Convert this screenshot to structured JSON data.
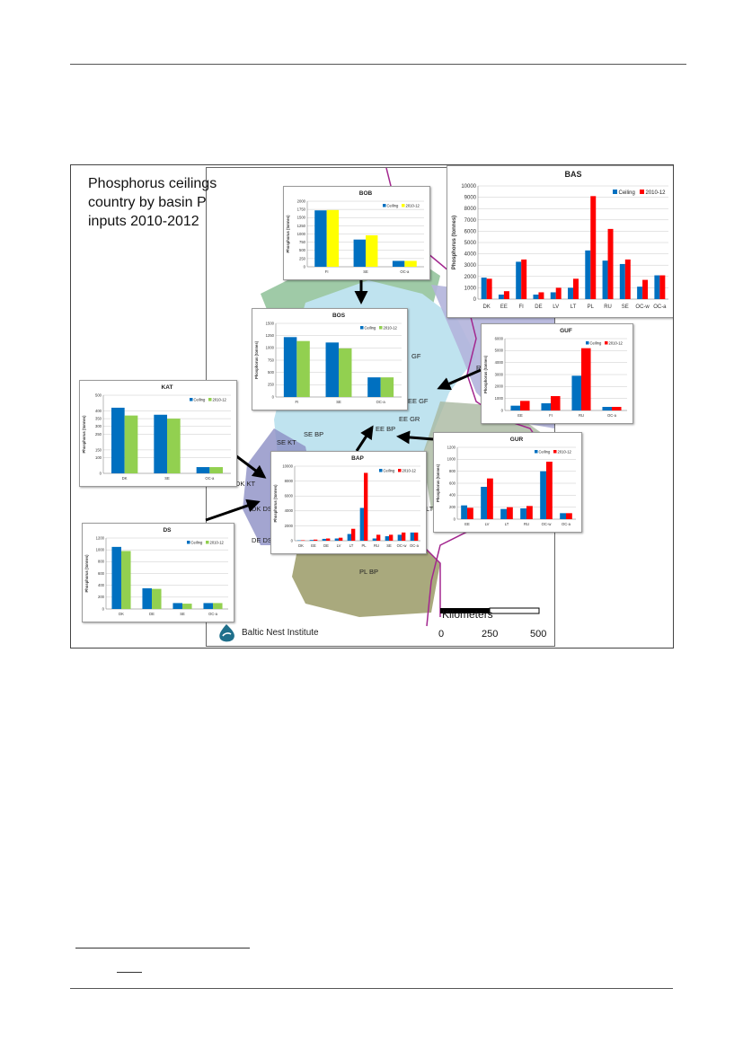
{
  "figure": {
    "title": "Phosphorus ceilings country by basin P inputs 2010-2012",
    "title_lines": [
      "Phosphorus ceilings",
      "country by basin P",
      "inputs 2010-2012"
    ],
    "map_labels": [
      "GF",
      "RU",
      "EE GF",
      "EE GR",
      "EE BP",
      "SE KT",
      "SE BP",
      "DK KT",
      "DK DS",
      "DE DS",
      "PL BP",
      "LT"
    ],
    "scale": {
      "title": "Kilometers",
      "ticks": [
        "0",
        "250",
        "500"
      ]
    },
    "brand": "Baltic Nest Institute",
    "colors": {
      "ceiling": "#0070c0",
      "bob_2010": "#ffff00",
      "green_2010": "#92d050",
      "red_2010": "#ff0000"
    }
  },
  "chart_data": [
    {
      "id": "BOB",
      "type": "bar",
      "title": "BOB",
      "ylabel": "Phosphorus (tonnes)",
      "yticks": [
        "0",
        "250",
        "500",
        "750",
        "1000",
        "1250",
        "1500",
        "1750",
        "2000"
      ],
      "ylim": [
        0,
        2000
      ],
      "categories": [
        "FI",
        "SE",
        "OC-a"
      ],
      "series": [
        {
          "name": "Ceiling",
          "color": "#0070c0",
          "values": [
            1720,
            830,
            180
          ]
        },
        {
          "name": "2010-12",
          "color": "#ffff00",
          "values": [
            1730,
            960,
            180
          ]
        }
      ],
      "legend": "top-right"
    },
    {
      "id": "BAS",
      "type": "bar",
      "title": "BAS",
      "ylabel": "Phosphorus (tonnes)",
      "yticks": [
        "0",
        "1000",
        "2000",
        "3000",
        "4000",
        "5000",
        "6000",
        "7000",
        "8000",
        "9000",
        "10000"
      ],
      "ylim": [
        0,
        10000
      ],
      "categories": [
        "DK",
        "EE",
        "FI",
        "DE",
        "LV",
        "LT",
        "PL",
        "RU",
        "SE",
        "OC-w",
        "OC-a"
      ],
      "series": [
        {
          "name": "Ceiling",
          "color": "#0070c0",
          "values": [
            1900,
            400,
            3300,
            400,
            600,
            1000,
            4300,
            3400,
            3100,
            1100,
            2100
          ]
        },
        {
          "name": "2010-12",
          "color": "#ff0000",
          "values": [
            1800,
            700,
            3500,
            600,
            1000,
            1800,
            9100,
            6200,
            3500,
            1700,
            2100
          ]
        }
      ],
      "legend": "top-right"
    },
    {
      "id": "BOS",
      "type": "bar",
      "title": "BOS",
      "ylabel": "Phosphorus (tonnes)",
      "yticks": [
        "0",
        "250",
        "500",
        "750",
        "1000",
        "1250",
        "1500"
      ],
      "ylim": [
        0,
        1500
      ],
      "categories": [
        "FI",
        "SE",
        "OC-a"
      ],
      "series": [
        {
          "name": "Ceiling",
          "color": "#0070c0",
          "values": [
            1220,
            1110,
            400
          ]
        },
        {
          "name": "2010-12",
          "color": "#92d050",
          "values": [
            1140,
            990,
            400
          ]
        }
      ],
      "legend": "top-right"
    },
    {
      "id": "GUF",
      "type": "bar",
      "title": "GUF",
      "ylabel": "Phosphorus (tonnes)",
      "yticks": [
        "0",
        "1000",
        "2000",
        "3000",
        "4000",
        "5000",
        "6000"
      ],
      "ylim": [
        0,
        6000
      ],
      "categories": [
        "EE",
        "FI",
        "RU",
        "OC-a"
      ],
      "series": [
        {
          "name": "Ceiling",
          "color": "#0070c0",
          "values": [
            400,
            600,
            2900,
            300
          ]
        },
        {
          "name": "2010-12",
          "color": "#ff0000",
          "values": [
            800,
            1200,
            5200,
            300
          ]
        }
      ],
      "legend": "top-right"
    },
    {
      "id": "KAT",
      "type": "bar",
      "title": "KAT",
      "ylabel": "Phosphorus (tonnes)",
      "yticks": [
        "0",
        "100",
        "150",
        "250",
        "300",
        "350",
        "400",
        "500"
      ],
      "ylim": [
        0,
        500
      ],
      "categories": [
        "DK",
        "SE",
        "OC-a"
      ],
      "series": [
        {
          "name": "Ceiling",
          "color": "#0070c0",
          "values": [
            420,
            375,
            40
          ]
        },
        {
          "name": "2010-12",
          "color": "#92d050",
          "values": [
            370,
            350,
            40
          ]
        }
      ],
      "legend": "top-right"
    },
    {
      "id": "GUR",
      "type": "bar",
      "title": "GUR",
      "ylabel": "Phosphorus (tonnes)",
      "yticks": [
        "0",
        "200",
        "400",
        "600",
        "800",
        "1000",
        "1200"
      ],
      "ylim": [
        0,
        1200
      ],
      "categories": [
        "EE",
        "LV",
        "LT",
        "RU",
        "OC-w",
        "OC-a"
      ],
      "series": [
        {
          "name": "Ceiling",
          "color": "#0070c0",
          "values": [
            230,
            540,
            170,
            180,
            800,
            100
          ]
        },
        {
          "name": "2010-12",
          "color": "#ff0000",
          "values": [
            190,
            680,
            200,
            220,
            960,
            100
          ]
        }
      ],
      "legend": "top-right"
    },
    {
      "id": "BAP",
      "type": "bar",
      "title": "BAP",
      "ylabel": "Phosphorus (tonnes)",
      "yticks": [
        "0",
        "2000",
        "4000",
        "6000",
        "8000",
        "10000"
      ],
      "ylim": [
        0,
        10000
      ],
      "categories": [
        "DK",
        "EE",
        "DE",
        "LV",
        "LT",
        "PL",
        "RU",
        "SE",
        "OC-w",
        "OC-a"
      ],
      "series": [
        {
          "name": "Ceiling",
          "color": "#0070c0",
          "values": [
            50,
            100,
            250,
            300,
            900,
            4400,
            300,
            600,
            800,
            1100
          ]
        },
        {
          "name": "2010-12",
          "color": "#ff0000",
          "values": [
            60,
            150,
            300,
            400,
            1600,
            9100,
            800,
            800,
            1100,
            1100
          ]
        }
      ],
      "legend": "top-right"
    },
    {
      "id": "DS",
      "type": "bar",
      "title": "DS",
      "ylabel": "Phosphorus (tonnes)",
      "yticks": [
        "0",
        "200",
        "400",
        "600",
        "800",
        "1000",
        "1200"
      ],
      "ylim": [
        0,
        1200
      ],
      "categories": [
        "DK",
        "DE",
        "SE",
        "OC-a"
      ],
      "series": [
        {
          "name": "Ceiling",
          "color": "#0070c0",
          "values": [
            1050,
            350,
            100,
            100
          ]
        },
        {
          "name": "2010-12",
          "color": "#92d050",
          "values": [
            980,
            340,
            90,
            100
          ]
        }
      ],
      "legend": "top-right"
    }
  ]
}
